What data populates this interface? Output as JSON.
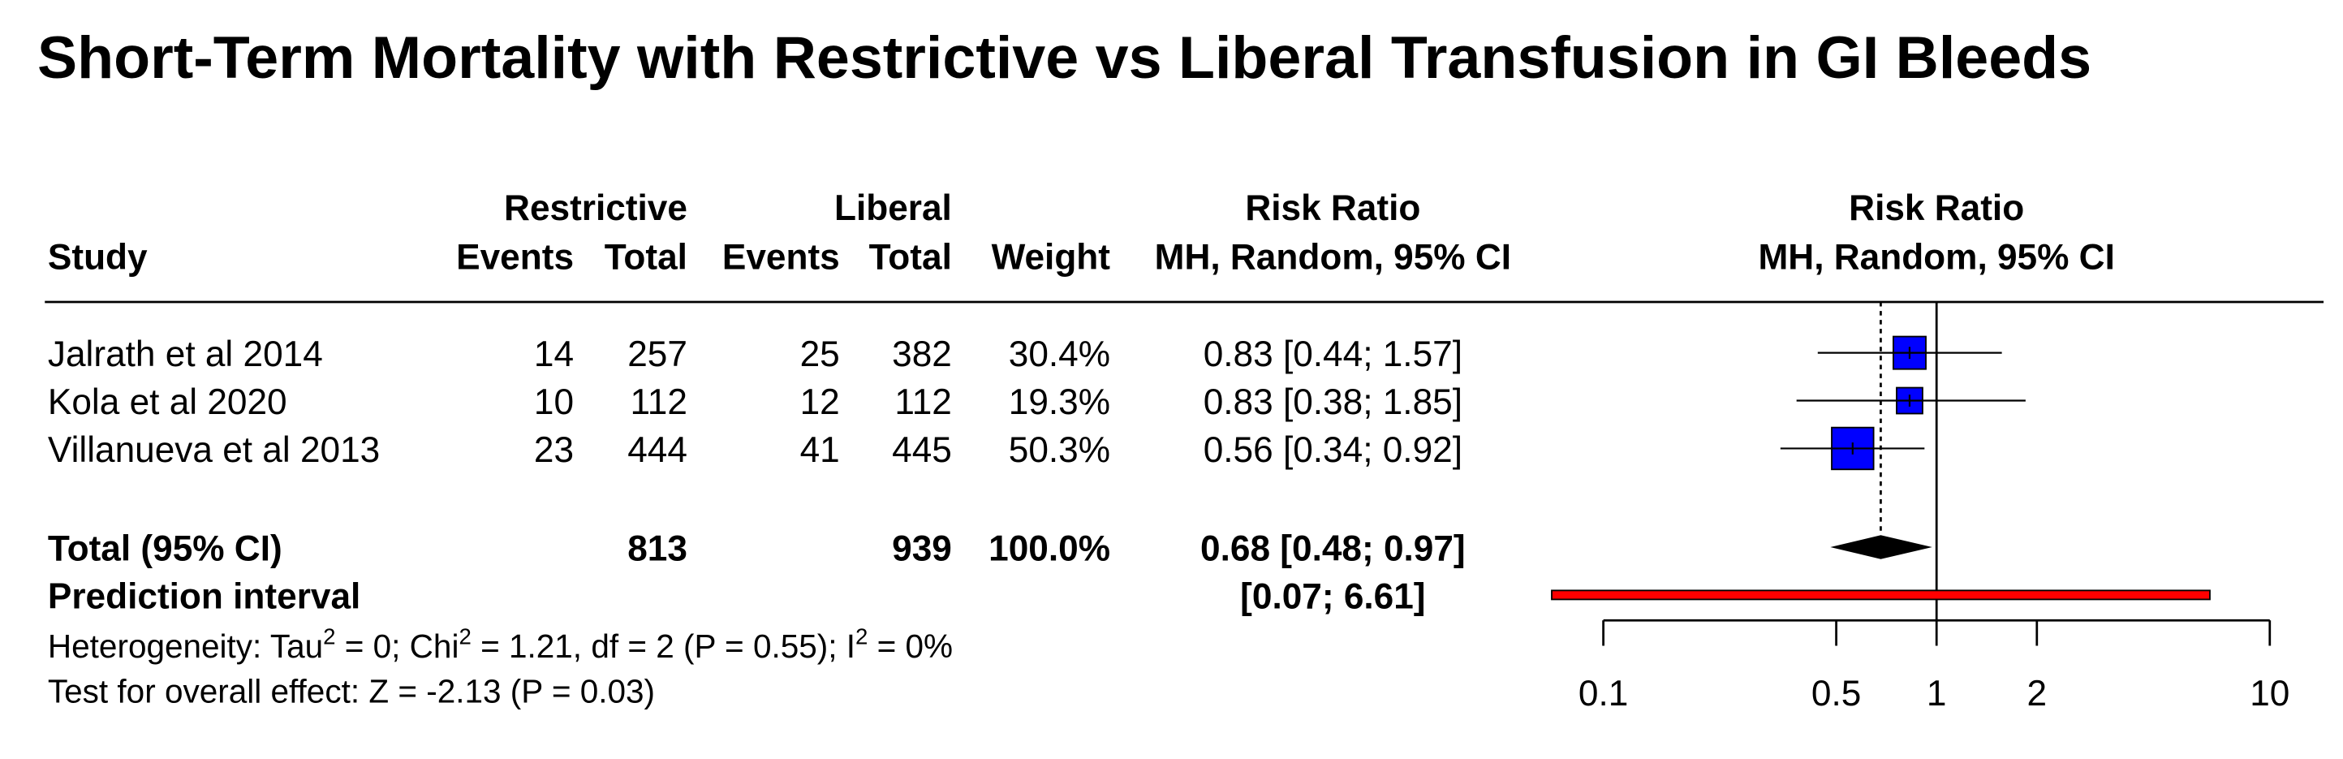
{
  "chart_data": {
    "type": "forest",
    "title": "Short-Term Mortality with Restrictive vs Liberal Transfusion in GI Bleeds",
    "study_header": "Study",
    "groups": [
      {
        "name": "Restrictive",
        "columns": [
          "Events",
          "Total"
        ]
      },
      {
        "name": "Liberal",
        "columns": [
          "Events",
          "Total"
        ]
      }
    ],
    "weight_header": "Weight",
    "effect_header": [
      "Risk Ratio",
      "MH, Random, 95% CI"
    ],
    "plot_header": [
      "Risk Ratio",
      "MH, Random, 95% CI"
    ],
    "studies": [
      {
        "name": "Jalrath et al 2014",
        "events_1": 14,
        "total_1": 257,
        "events_2": 25,
        "total_2": 382,
        "weight": 30.4,
        "weight_label": "30.4%",
        "rr": 0.83,
        "lower": 0.44,
        "upper": 1.57,
        "ci_label": "0.83 [0.44; 1.57]"
      },
      {
        "name": "Kola et al 2020",
        "events_1": 10,
        "total_1": 112,
        "events_2": 12,
        "total_2": 112,
        "weight": 19.3,
        "weight_label": "19.3%",
        "rr": 0.83,
        "lower": 0.38,
        "upper": 1.85,
        "ci_label": "0.83 [0.38; 1.85]"
      },
      {
        "name": "Villanueva et al 2013",
        "events_1": 23,
        "total_1": 444,
        "events_2": 41,
        "total_2": 445,
        "weight": 50.3,
        "weight_label": "50.3%",
        "rr": 0.56,
        "lower": 0.34,
        "upper": 0.92,
        "ci_label": "0.56 [0.34; 0.92]"
      }
    ],
    "total": {
      "name": "Total (95% CI)",
      "total_1": 813,
      "total_2": 939,
      "weight": 100.0,
      "weight_label": "100.0%",
      "rr": 0.68,
      "lower": 0.48,
      "upper": 0.97,
      "ci_label": "0.68 [0.48; 0.97]"
    },
    "prediction": {
      "name": "Prediction interval",
      "lower": 0.07,
      "upper": 6.61,
      "ci_label": "[0.07; 6.61]"
    },
    "heterogeneity": [
      "Heterogeneity: Tau",
      "2",
      " = 0; Chi",
      "2",
      " = 1.21, df = 2 (P = 0.55); I",
      "2",
      " = 0%"
    ],
    "overall_effect": "Test for overall effect: Z = -2.13 (P = 0.03)",
    "xlim": [
      0.1,
      10
    ],
    "xticks": [
      0.1,
      0.5,
      1,
      2,
      10
    ],
    "log_scale": true,
    "ref_line": 1,
    "box_color": "#0000ff",
    "prediction_color": "#ff0000"
  }
}
